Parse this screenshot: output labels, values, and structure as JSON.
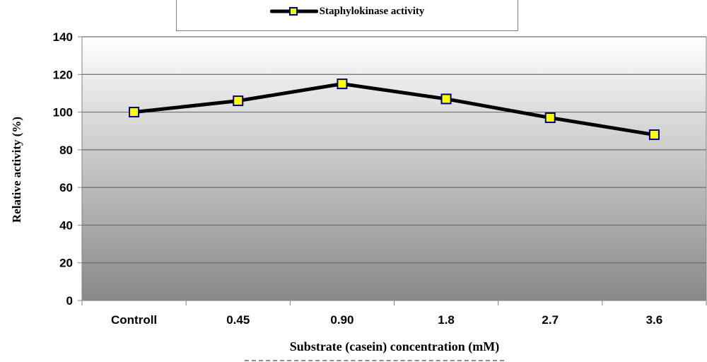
{
  "chart_data": {
    "type": "line",
    "title": "",
    "xlabel": "Substrate (casein) concentration (mM)",
    "ylabel": "Relative activity (%)",
    "categories": [
      "Controll",
      "0.45",
      "0.90",
      "1.8",
      "2.7",
      "3.6"
    ],
    "series": [
      {
        "name": "Staphylokinase activity",
        "values": [
          100,
          106,
          115,
          107,
          97,
          88
        ],
        "line_color": "#000000",
        "marker": "square",
        "marker_fill": "#ffff00",
        "marker_edge": "#000080"
      }
    ],
    "ylim": [
      0,
      140
    ],
    "yticks": [
      0,
      20,
      40,
      60,
      80,
      100,
      120,
      140
    ],
    "grid": true,
    "legend": "top-center",
    "background": "gradient white-to-gray"
  },
  "legend": {
    "label": "Staphylokinase activity"
  }
}
